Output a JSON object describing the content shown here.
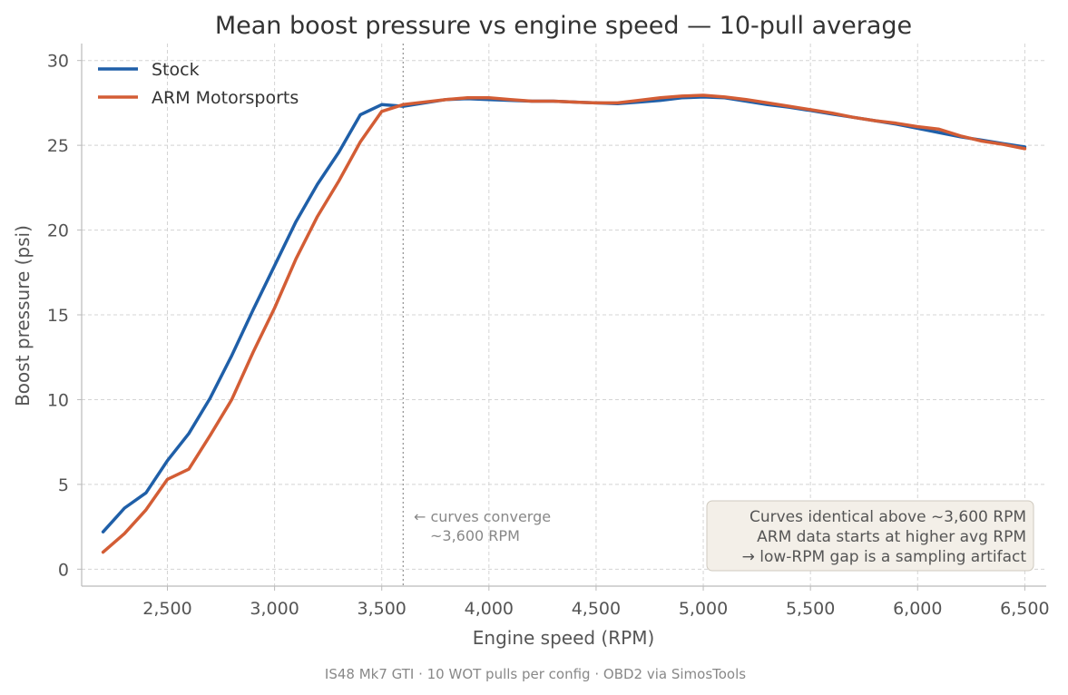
{
  "chart_data": {
    "type": "line",
    "title": "Mean boost pressure vs engine speed — 10-pull average",
    "xlabel": "Engine speed (RPM)",
    "ylabel": "Boost pressure (psi)",
    "xlim": [
      2100,
      6600
    ],
    "ylim": [
      -1,
      31
    ],
    "xticks": [
      2500,
      3000,
      3500,
      4000,
      4500,
      5000,
      5500,
      6000,
      6500
    ],
    "xtick_labels": [
      "2,500",
      "3,000",
      "3,500",
      "4,000",
      "4,500",
      "5,000",
      "5,500",
      "6,000",
      "6,500"
    ],
    "yticks": [
      0,
      5,
      10,
      15,
      20,
      25,
      30
    ],
    "ytick_labels": [
      "0",
      "5",
      "10",
      "15",
      "20",
      "25",
      "30"
    ],
    "grid": true,
    "legend_position": "top-left",
    "series": [
      {
        "name": "Stock",
        "color": "#1f5fa8",
        "x": [
          2200,
          2300,
          2400,
          2500,
          2600,
          2700,
          2800,
          2900,
          3000,
          3100,
          3200,
          3300,
          3400,
          3500,
          3600,
          3700,
          3800,
          3900,
          4000,
          4100,
          4200,
          4300,
          4400,
          4500,
          4600,
          4700,
          4800,
          4900,
          5000,
          5100,
          5200,
          5300,
          5400,
          5500,
          5600,
          5700,
          5800,
          5900,
          6000,
          6100,
          6200,
          6300,
          6400,
          6500
        ],
        "y": [
          2.2,
          3.6,
          4.5,
          6.4,
          8.0,
          10.1,
          12.6,
          15.3,
          17.9,
          20.5,
          22.7,
          24.6,
          26.8,
          27.4,
          27.3,
          27.5,
          27.7,
          27.75,
          27.7,
          27.65,
          27.6,
          27.6,
          27.55,
          27.5,
          27.45,
          27.55,
          27.65,
          27.8,
          27.85,
          27.8,
          27.6,
          27.4,
          27.25,
          27.05,
          26.85,
          26.65,
          26.45,
          26.25,
          26.0,
          25.75,
          25.5,
          25.3,
          25.1,
          24.9
        ]
      },
      {
        "name": "ARM Motorsports",
        "color": "#d35d35",
        "x": [
          2200,
          2300,
          2400,
          2500,
          2600,
          2700,
          2800,
          2900,
          3000,
          3100,
          3200,
          3300,
          3400,
          3500,
          3600,
          3700,
          3800,
          3900,
          4000,
          4100,
          4200,
          4300,
          4400,
          4500,
          4600,
          4700,
          4800,
          4900,
          5000,
          5100,
          5200,
          5300,
          5400,
          5500,
          5600,
          5700,
          5800,
          5900,
          6000,
          6100,
          6200,
          6300,
          6400,
          6500
        ],
        "y": [
          1.0,
          2.1,
          3.5,
          5.3,
          5.9,
          7.9,
          10.0,
          12.8,
          15.4,
          18.3,
          20.8,
          22.9,
          25.2,
          27.0,
          27.4,
          27.55,
          27.7,
          27.8,
          27.8,
          27.7,
          27.6,
          27.6,
          27.55,
          27.5,
          27.5,
          27.65,
          27.8,
          27.9,
          27.95,
          27.85,
          27.7,
          27.5,
          27.3,
          27.1,
          26.9,
          26.65,
          26.45,
          26.3,
          26.1,
          25.95,
          25.55,
          25.25,
          25.05,
          24.8
        ]
      }
    ],
    "reference_line": {
      "x": 3600,
      "style": "dotted",
      "color": "#999999"
    },
    "annotations": [
      {
        "id": "converge-note",
        "lines": [
          "← curves converge",
          "~3,600 RPM"
        ]
      },
      {
        "id": "summary-box",
        "lines": [
          "Curves identical above ~3,600 RPM",
          "ARM data starts at higher avg RPM",
          "→ low-RPM gap is a sampling artifact"
        ],
        "position": "bottom-right"
      }
    ],
    "caption": "IS48 Mk7 GTI · 10 WOT pulls per config · OBD2 via SimosTools"
  }
}
